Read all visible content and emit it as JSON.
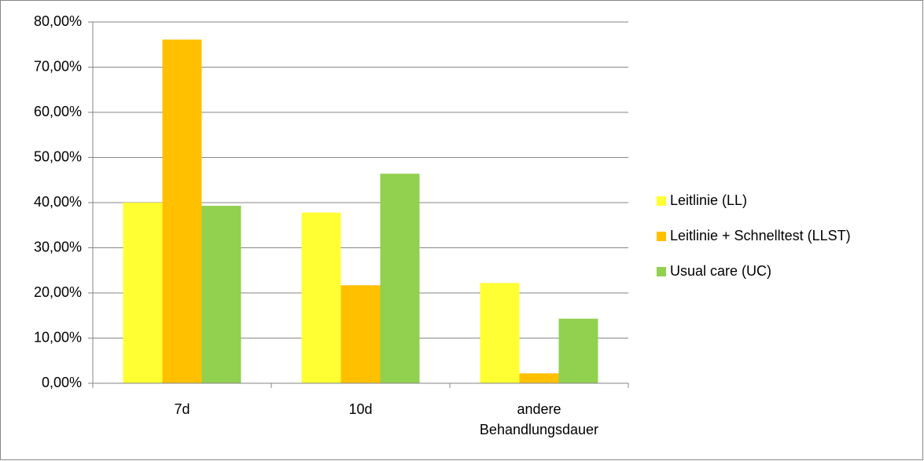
{
  "chart_data": {
    "type": "bar",
    "categories": [
      "7d",
      "10d",
      "andere Behandlungsdauer"
    ],
    "series": [
      {
        "name": "Leitlinie (LL)",
        "color": "#ffff33",
        "values": [
          40.0,
          37.8,
          22.2
        ]
      },
      {
        "name": "Leitlinie + Schnelltest (LLST)",
        "color": "#ffc000",
        "values": [
          76.1,
          21.7,
          2.2
        ]
      },
      {
        "name": "Usual care (UC)",
        "color": "#92d050",
        "values": [
          39.3,
          46.4,
          14.3
        ]
      }
    ],
    "ylim": [
      0,
      80
    ],
    "yticks": [
      {
        "value": 0,
        "label": "0,00%"
      },
      {
        "value": 10,
        "label": "10,00%"
      },
      {
        "value": 20,
        "label": "20,00%"
      },
      {
        "value": 30,
        "label": "30,00%"
      },
      {
        "value": 40,
        "label": "40,00%"
      },
      {
        "value": 50,
        "label": "50,00%"
      },
      {
        "value": 60,
        "label": "60,00%"
      },
      {
        "value": 70,
        "label": "70,00%"
      },
      {
        "value": 80,
        "label": "80,00%"
      }
    ],
    "grid": true,
    "legend": "right"
  }
}
